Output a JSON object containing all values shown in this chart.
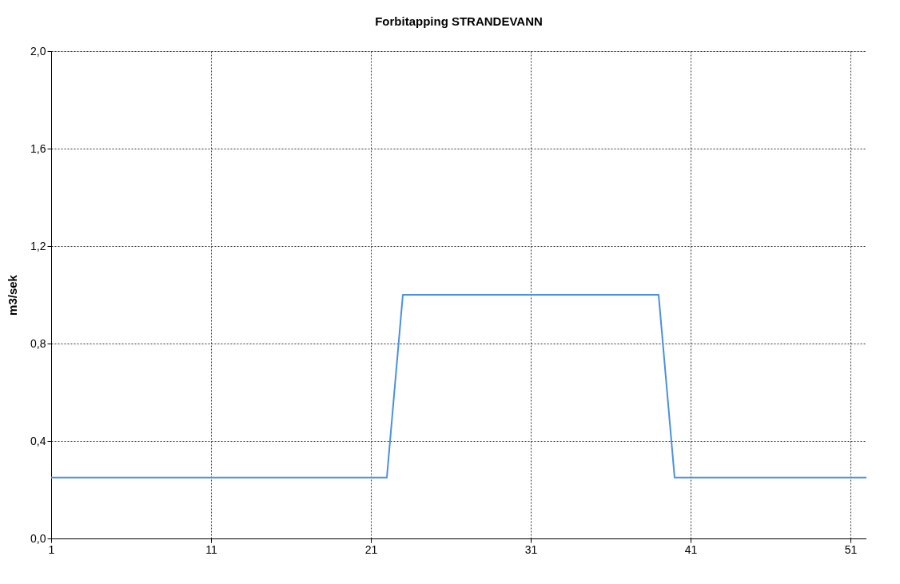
{
  "chart_data": {
    "type": "line",
    "title": "Forbitapping  STRANDEVANN",
    "ylabel": "m3/sek",
    "x": [
      1,
      22,
      23,
      39,
      40,
      52
    ],
    "series": [
      {
        "color": "#4a90e2",
        "values": [
          0.25,
          0.25,
          1.0,
          1.0,
          0.25,
          0.25
        ]
      }
    ],
    "xlim": [
      1,
      52
    ],
    "xticks": [
      1,
      11,
      21,
      31,
      41,
      51
    ],
    "ylim": [
      0,
      2
    ],
    "yticks": [
      {
        "value": 0,
        "label": "0,0"
      },
      {
        "value": 0.4,
        "label": "0,4"
      },
      {
        "value": 0.8,
        "label": "0,8"
      },
      {
        "value": 1.2,
        "label": "1,2"
      },
      {
        "value": 1.6,
        "label": "1,6"
      },
      {
        "value": 2,
        "label": "2,0"
      }
    ],
    "grid": true,
    "marker": "none",
    "line_style": "solid"
  }
}
